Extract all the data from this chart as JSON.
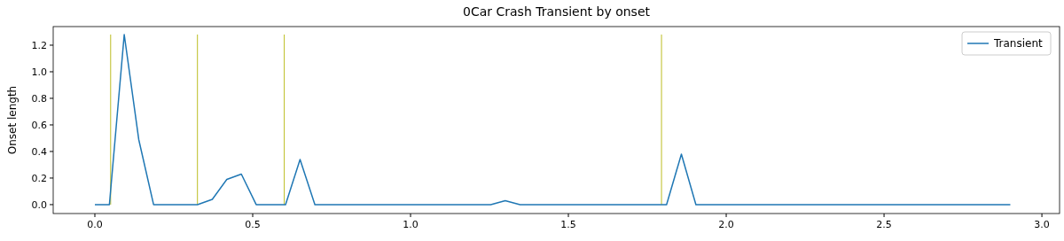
{
  "chart_data": {
    "type": "line",
    "title": "0Car Crash Transient by onset",
    "ylabel": "Onset length",
    "x": [
      0,
      0.046,
      0.093,
      0.139,
      0.186,
      0.325,
      0.372,
      0.418,
      0.464,
      0.511,
      0.604,
      0.65,
      0.697,
      1.254,
      1.3,
      1.347,
      1.811,
      1.858,
      1.904,
      2.9
    ],
    "series": [
      {
        "name": "Transient",
        "color": "#1f77b4",
        "values": [
          0,
          0,
          1.28,
          0.49,
          0,
          0,
          0.04,
          0.19,
          0.23,
          0,
          0,
          0.34,
          0,
          0,
          0.03,
          0,
          0,
          0.38,
          0,
          0
        ]
      }
    ],
    "xlim": [
      -0.132,
      3.056
    ],
    "xticks": [
      {
        "value": 0,
        "label": "0.0"
      },
      {
        "value": 0.5,
        "label": "0.5"
      },
      {
        "value": 1,
        "label": "1.0"
      },
      {
        "value": 1.5,
        "label": "1.5"
      },
      {
        "value": 2,
        "label": "2.0"
      },
      {
        "value": 2.5,
        "label": "2.5"
      },
      {
        "value": 3,
        "label": "3.0"
      }
    ],
    "ylim": [
      -0.067,
      1.34
    ],
    "yticks": [
      {
        "value": 0,
        "label": "0.0"
      },
      {
        "value": 0.2,
        "label": "0.2"
      },
      {
        "value": 0.4,
        "label": "0.4"
      },
      {
        "value": 0.6,
        "label": "0.6"
      },
      {
        "value": 0.8,
        "label": "0.8"
      },
      {
        "value": 1,
        "label": "1.0"
      },
      {
        "value": 1.2,
        "label": "1.2"
      }
    ],
    "ref_lines": [
      {
        "axis": "x",
        "value": 0.05,
        "color": "#bcbd22"
      },
      {
        "axis": "x",
        "value": 0.325,
        "color": "#bcbd22"
      },
      {
        "axis": "x",
        "value": 0.6,
        "color": "#bcbd22"
      },
      {
        "axis": "x",
        "value": 1.795,
        "color": "#bcbd22"
      }
    ],
    "legend": "top right",
    "grid": false,
    "marker": "none",
    "line_style": "solid"
  }
}
